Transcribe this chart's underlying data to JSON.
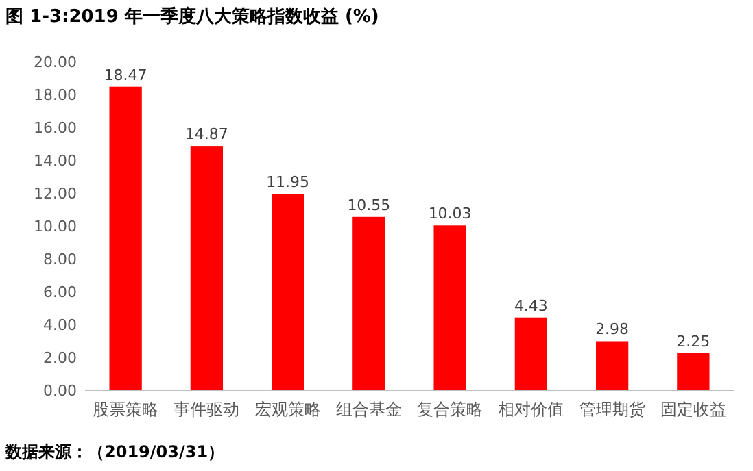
{
  "chart_data": {
    "type": "bar",
    "title": "图 1-3:2019 年一季度八大策略指数收益 (%)",
    "categories": [
      "股票策略",
      "事件驱动",
      "宏观策略",
      "组合基金",
      "复合策略",
      "相对价值",
      "管理期货",
      "固定收益"
    ],
    "values": [
      18.47,
      14.87,
      11.95,
      10.55,
      10.03,
      4.43,
      2.98,
      2.25
    ],
    "color": "#ff0000",
    "data_labels": true,
    "grid": false,
    "ylim": [
      0,
      20
    ],
    "yticks": [
      {
        "value": 0,
        "label": "0.00"
      },
      {
        "value": 2,
        "label": "2.00"
      },
      {
        "value": 4,
        "label": "4.00"
      },
      {
        "value": 6,
        "label": "6.00"
      },
      {
        "value": 8,
        "label": "8.00"
      },
      {
        "value": 10,
        "label": "10.00"
      },
      {
        "value": 12,
        "label": "12.00"
      },
      {
        "value": 14,
        "label": "14.00"
      },
      {
        "value": 16,
        "label": "16.00"
      },
      {
        "value": 18,
        "label": "18.00"
      },
      {
        "value": 20,
        "label": "20.00"
      }
    ],
    "annotations": [
      "数据来源：（2019/03/31）"
    ]
  }
}
